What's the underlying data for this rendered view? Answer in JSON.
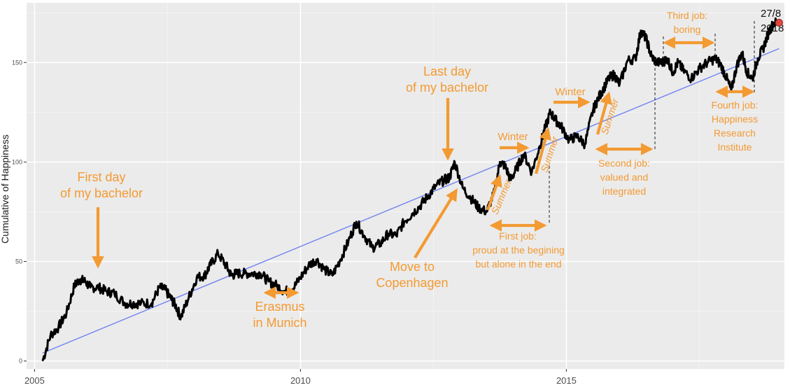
{
  "chart_data": {
    "type": "line",
    "title": "",
    "xlabel": "",
    "ylabel": "Cumulative of Happiness",
    "xlim": [
      2004.85,
      2019.1
    ],
    "ylim": [
      -4,
      180
    ],
    "x_ticks": [
      "2005",
      "2010",
      "2015"
    ],
    "y_ticks": [
      "0",
      "50",
      "100",
      "150"
    ],
    "grid": true,
    "series": [
      {
        "color": "#000000",
        "x": [
          2005.15,
          2005.3,
          2005.45,
          2005.6,
          2005.75,
          2005.85,
          2005.95,
          2006.05,
          2006.2,
          2006.35,
          2006.5,
          2006.7,
          2006.85,
          2007.0,
          2007.2,
          2007.35,
          2007.45,
          2007.55,
          2007.65,
          2007.75,
          2007.9,
          2008.05,
          2008.2,
          2008.3,
          2008.45,
          2008.6,
          2008.7,
          2008.8,
          2008.95,
          2009.1,
          2009.25,
          2009.4,
          2009.55,
          2009.7,
          2009.85,
          2010.0,
          2010.15,
          2010.3,
          2010.45,
          2010.6,
          2010.75,
          2010.9,
          2011.05,
          2011.2,
          2011.35,
          2011.5,
          2011.65,
          2011.8,
          2011.95,
          2012.1,
          2012.25,
          2012.4,
          2012.55,
          2012.7,
          2012.8,
          2012.9,
          2013.05,
          2013.2,
          2013.35,
          2013.5,
          2013.65,
          2013.75,
          2013.85,
          2013.95,
          2014.05,
          2014.2,
          2014.35,
          2014.5,
          2014.6,
          2014.7,
          2014.8,
          2014.9,
          2015.05,
          2015.2,
          2015.35,
          2015.5,
          2015.6,
          2015.7,
          2015.8,
          2015.9,
          2016.0,
          2016.15,
          2016.3,
          2016.4,
          2016.5,
          2016.6,
          2016.7,
          2016.8,
          2016.9,
          2017.0,
          2017.1,
          2017.2,
          2017.35,
          2017.5,
          2017.65,
          2017.8,
          2017.9,
          2018.0,
          2018.1,
          2018.2,
          2018.3,
          2018.4,
          2018.5,
          2018.6,
          2018.7,
          2018.8,
          2018.9,
          2019.0
        ],
        "y": [
          0,
          13,
          17,
          24,
          38,
          41,
          40,
          37,
          37,
          35,
          34,
          29,
          29,
          29,
          29,
          37,
          36,
          32,
          28,
          22,
          32,
          42,
          43,
          48,
          54,
          48,
          43,
          44,
          44,
          44,
          44,
          40,
          38,
          35,
          36,
          42,
          48,
          51,
          46,
          43,
          51,
          60,
          70,
          63,
          57,
          59,
          64,
          63,
          70,
          74,
          78,
          83,
          88,
          91,
          92,
          100,
          87,
          82,
          77,
          75,
          85,
          100,
          98,
          91,
          96,
          104,
          95,
          108,
          117,
          125,
          121,
          118,
          111,
          113,
          109,
          126,
          132,
          137,
          142,
          144,
          139,
          151,
          152,
          166,
          162,
          153,
          150,
          150,
          152,
          145,
          150,
          146,
          142,
          147,
          150,
          152,
          149,
          143,
          136,
          148,
          155,
          145,
          142,
          152,
          157,
          165,
          170,
          170
        ]
      },
      {
        "color": "#6f83f2",
        "x": [
          2005.15,
          2019.0
        ],
        "y": [
          4,
          157
        ]
      }
    ],
    "end_point": {
      "x": 2019.0,
      "y": 170,
      "color": "#e2453f"
    },
    "annotations": [
      "First day",
      "of my bachelor",
      "Erasmus",
      "in Munich",
      "Move to",
      "Copenhagen",
      "Last day",
      "of my bachelor",
      "Winter",
      "Summer",
      "First job:",
      "proud at the begining",
      "but alone in the end",
      "Winter",
      "Summer",
      "Summer",
      "Second job:",
      "valued and",
      "integrated",
      "Third job:",
      "boring",
      "Fourth job:",
      "Happiness",
      "Research",
      "Institute",
      "27/8",
      "2018"
    ]
  },
  "colors": {
    "panel": "#ebebeb",
    "grid_major": "#ffffff",
    "annotation": "#f39a32",
    "line": "#000000",
    "trend": "#6f83f2",
    "endpoint": "#e2453f"
  }
}
